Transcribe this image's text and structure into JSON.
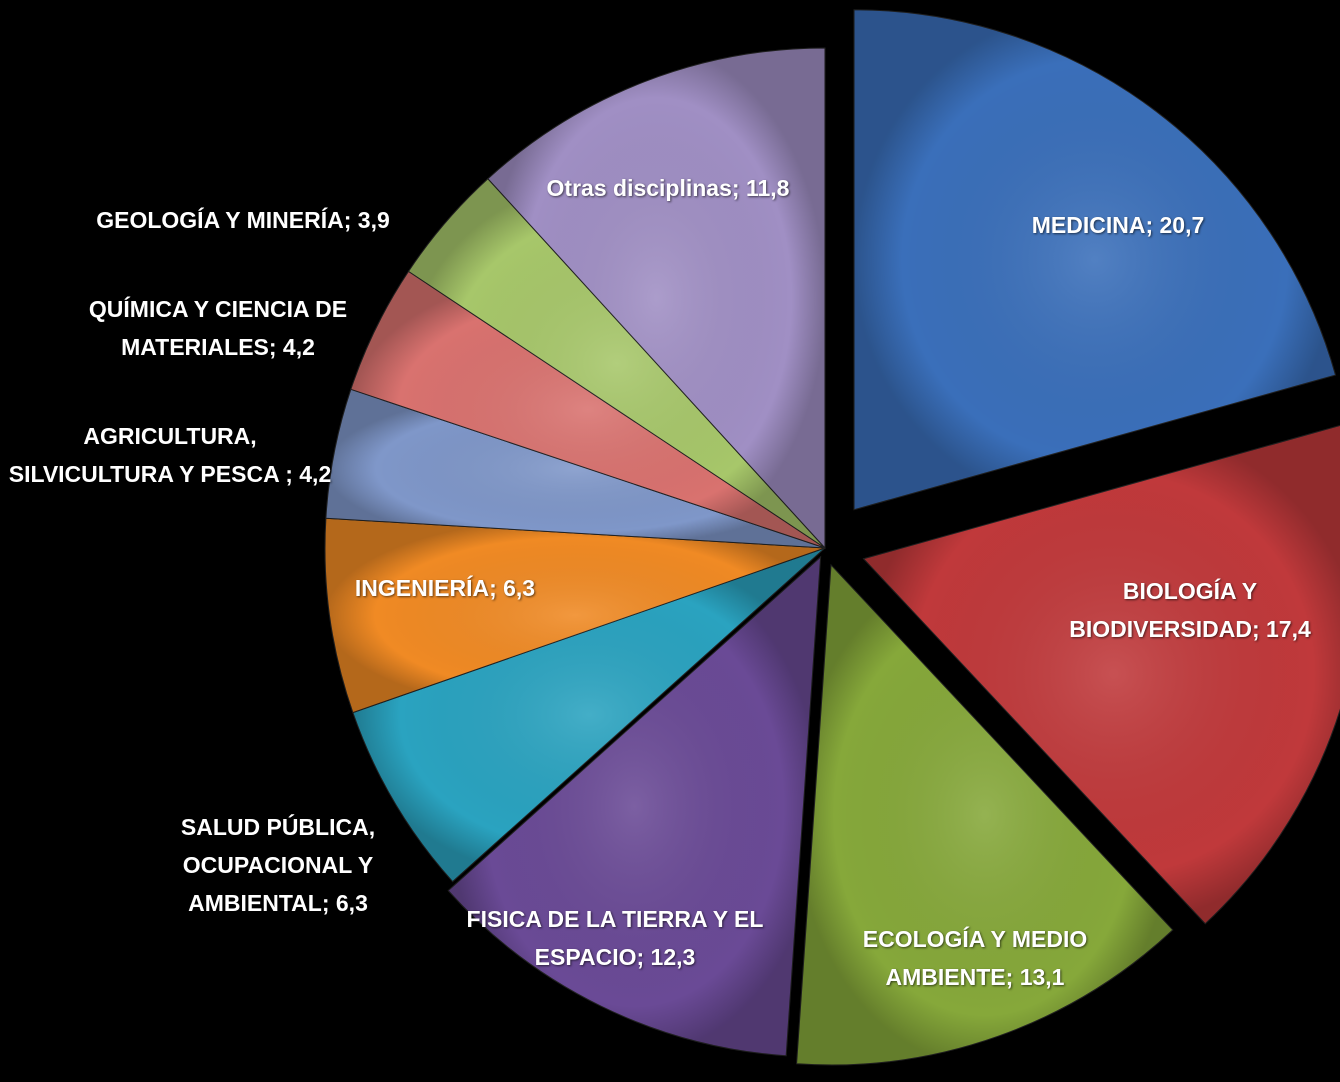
{
  "chart_data": {
    "type": "pie",
    "categories": [
      "MEDICINA;",
      "BIOLOGÍA Y BIODIVERSIDAD;",
      "ECOLOGÍA Y MEDIO AMBIENTE;",
      "FISICA DE LA TIERRA Y EL ESPACIO;",
      "SALUD PÚBLICA, OCUPACIONAL Y AMBIENTAL;",
      "INGENIERÍA;",
      "AGRICULTURA, SILVICULTURA Y PESCA ;",
      "QUÍMICA Y CIENCIA DE MATERIALES;",
      "GEOLOGÍA Y MINERÍA;",
      "Otras disciplinas;"
    ],
    "values": [
      20.7,
      17.4,
      13.1,
      12.3,
      6.3,
      6.3,
      4.2,
      4.2,
      3.9,
      11.8
    ],
    "value_labels": [
      "20,7",
      "17,4",
      "13,1",
      "12,3",
      "6,3",
      "6,3",
      "4,2",
      "4,2",
      "3,9",
      "11,8"
    ],
    "colors": [
      "#3a6fba",
      "#c0393b",
      "#86a83a",
      "#6a4a96",
      "#2aa3c0",
      "#f08a24",
      "#7f97c9",
      "#d9726f",
      "#a7c76a",
      "#a08fc4"
    ]
  }
}
